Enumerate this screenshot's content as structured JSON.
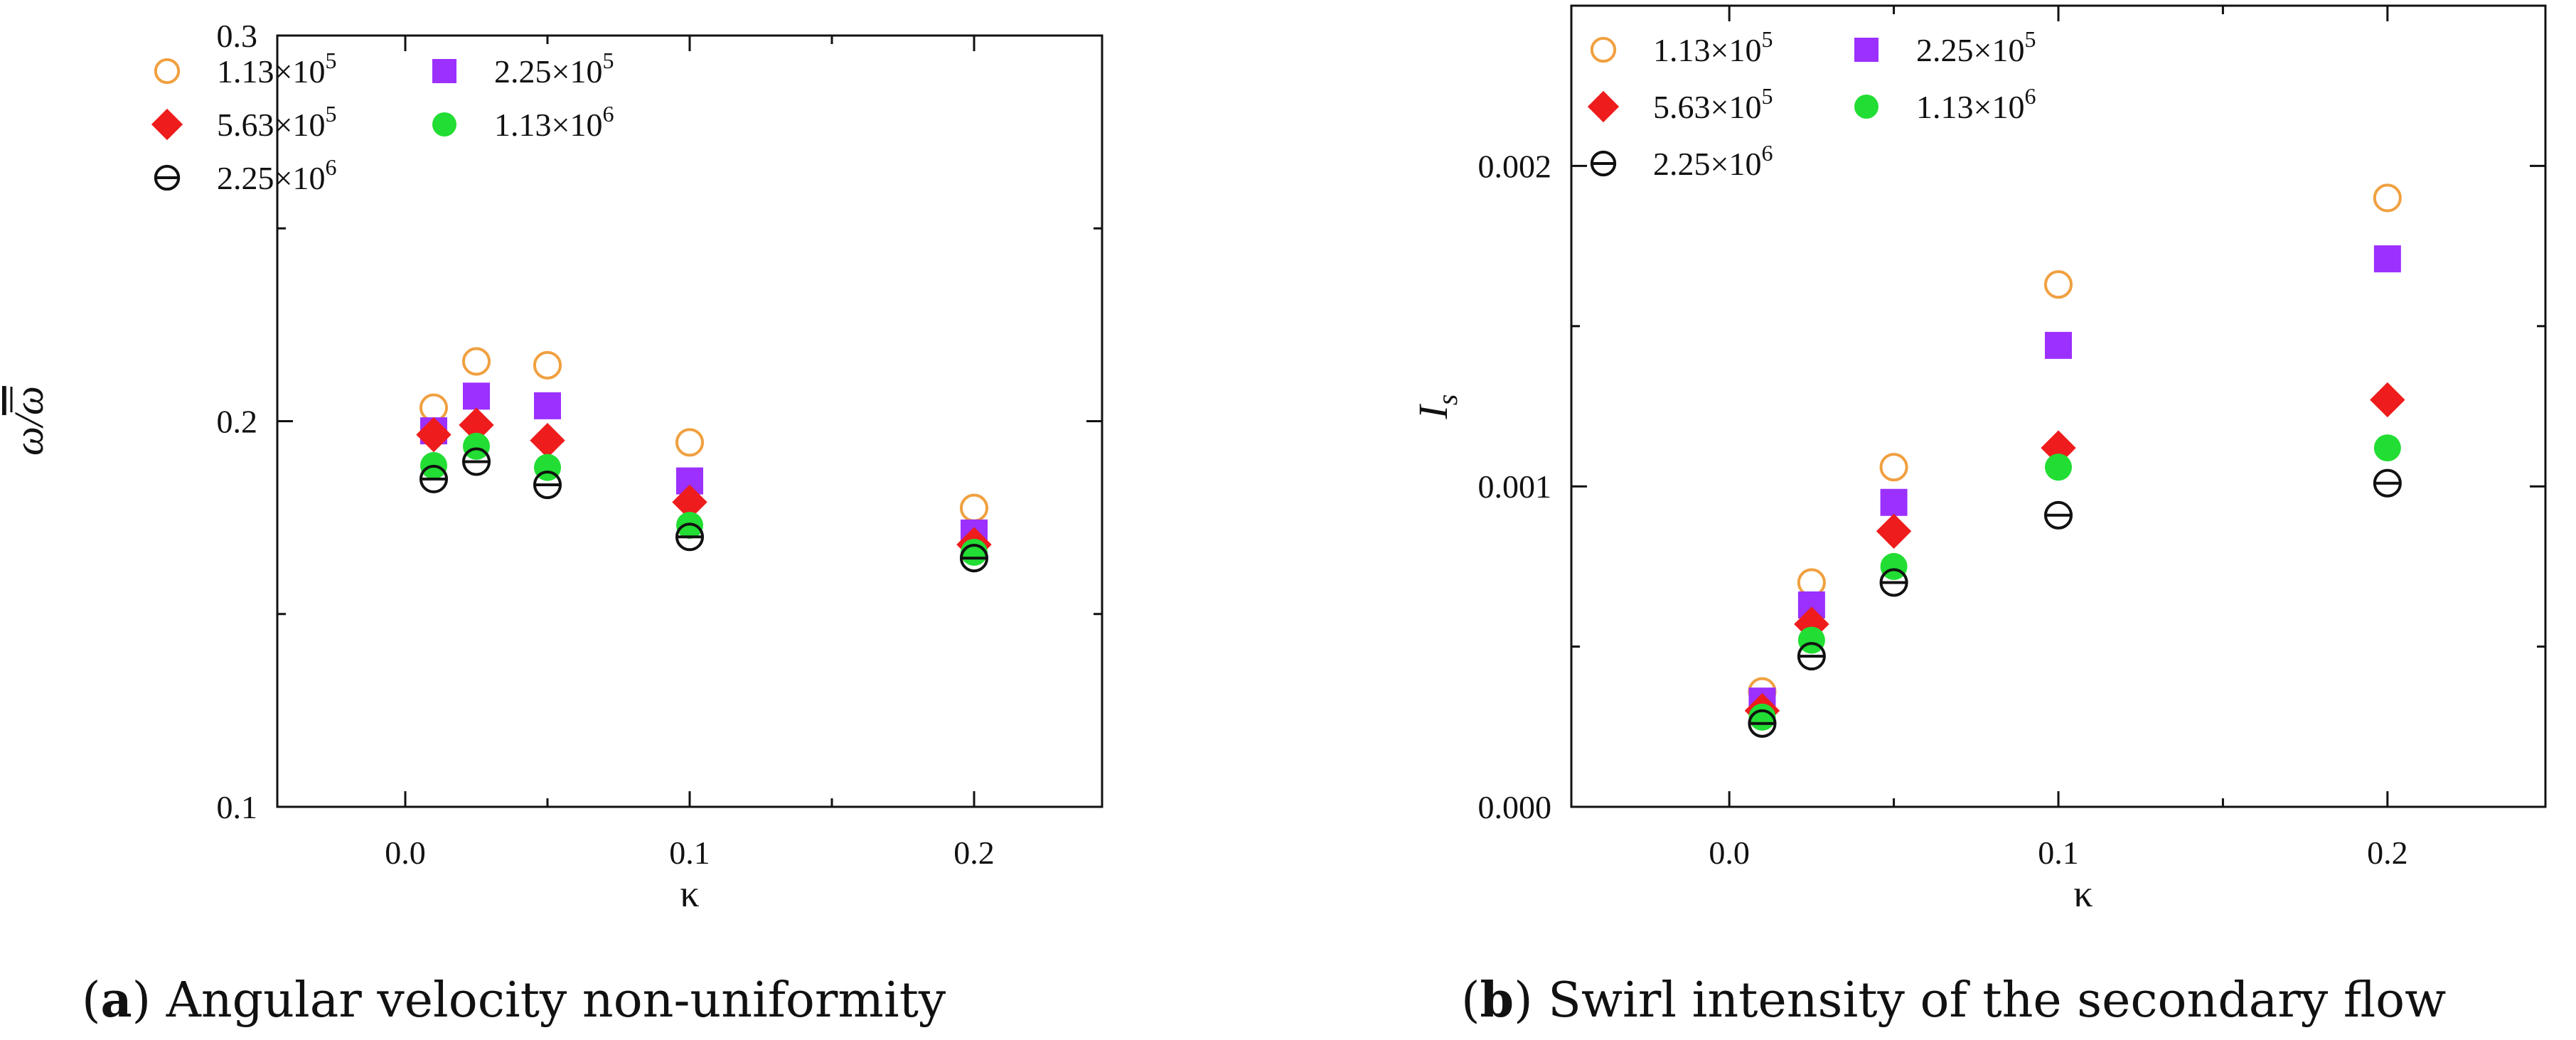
{
  "chart_data": [
    {
      "type": "scatter",
      "id": "a",
      "xlabel": "κ",
      "ylabel": "ω/ω̄",
      "xlim": [
        -0.045,
        0.245
      ],
      "ylim": [
        0.1,
        0.3
      ],
      "xticks": [
        0.0,
        0.1,
        0.2
      ],
      "xtick_labels": [
        "0.0",
        "0.1",
        "0.2"
      ],
      "yticks": [
        0.1,
        0.2,
        0.3
      ],
      "ytick_labels": [
        "0.1",
        "0.2",
        "0.3"
      ],
      "legend_position": "top-left",
      "caption_letter": "a",
      "caption_text": "Angular velocity non-uniformity",
      "x": [
        0.01,
        0.025,
        0.05,
        0.1,
        0.2
      ],
      "series": [
        {
          "name": "1.13×10^5",
          "mantissa": "1.13×10",
          "exp": "5",
          "marker": "open-circle",
          "color": "#f0a040",
          "values": [
            0.2035,
            0.2155,
            0.2145,
            0.1945,
            0.1775
          ]
        },
        {
          "name": "2.25×10^5",
          "mantissa": "2.25×10",
          "exp": "5",
          "marker": "square",
          "color": "#9b30ff",
          "values": [
            0.1975,
            0.2065,
            0.204,
            0.1845,
            0.171
          ]
        },
        {
          "name": "5.63×10^5",
          "mantissa": "5.63×10",
          "exp": "5",
          "marker": "diamond",
          "color": "#ee1c1c",
          "values": [
            0.1965,
            0.199,
            0.195,
            0.179,
            0.168
          ]
        },
        {
          "name": "1.13×10^6",
          "mantissa": "1.13×10",
          "exp": "6",
          "marker": "filled-circle",
          "color": "#22dd33",
          "values": [
            0.1885,
            0.1935,
            0.188,
            0.173,
            0.166
          ]
        },
        {
          "name": "2.25×10^6",
          "mantissa": "2.25×10",
          "exp": "6",
          "marker": "theta-circle",
          "color": "#111111",
          "values": [
            0.185,
            0.1895,
            0.1835,
            0.17,
            0.1645
          ]
        }
      ]
    },
    {
      "type": "scatter",
      "id": "b",
      "xlabel": "κ",
      "ylabel": "I",
      "ylabel_sub": "s",
      "xlim": [
        -0.048,
        0.248
      ],
      "ylim": [
        0.0,
        0.0025
      ],
      "xticks": [
        0.0,
        0.1,
        0.2
      ],
      "xtick_labels": [
        "0.0",
        "0.1",
        "0.2"
      ],
      "yticks": [
        0.0,
        0.001,
        0.002
      ],
      "ytick_labels": [
        "0.000",
        "0.001",
        "0.002"
      ],
      "legend_position": "top-left",
      "caption_letter": "b",
      "caption_text": "Swirl intensity of the secondary flow",
      "x": [
        0.01,
        0.025,
        0.05,
        0.1,
        0.2
      ],
      "series": [
        {
          "name": "1.13×10^5",
          "mantissa": "1.13×10",
          "exp": "5",
          "marker": "open-circle",
          "color": "#f0a040",
          "values": [
            0.00036,
            0.0007,
            0.00106,
            0.00163,
            0.0019
          ]
        },
        {
          "name": "2.25×10^5",
          "mantissa": "2.25×10",
          "exp": "5",
          "marker": "square",
          "color": "#9b30ff",
          "values": [
            0.00033,
            0.00063,
            0.00095,
            0.00144,
            0.00171
          ]
        },
        {
          "name": "5.63×10^5",
          "mantissa": "5.63×10",
          "exp": "5",
          "marker": "diamond",
          "color": "#ee1c1c",
          "values": [
            0.0003,
            0.00057,
            0.00086,
            0.00112,
            0.00127
          ]
        },
        {
          "name": "1.13×10^6",
          "mantissa": "1.13×10",
          "exp": "6",
          "marker": "filled-circle",
          "color": "#22dd33",
          "values": [
            0.00028,
            0.00052,
            0.00075,
            0.00106,
            0.00112
          ]
        },
        {
          "name": "2.25×10^6",
          "mantissa": "2.25×10",
          "exp": "6",
          "marker": "theta-circle",
          "color": "#111111",
          "values": [
            0.00026,
            0.00047,
            0.0007,
            0.00091,
            0.00101
          ]
        }
      ]
    }
  ]
}
